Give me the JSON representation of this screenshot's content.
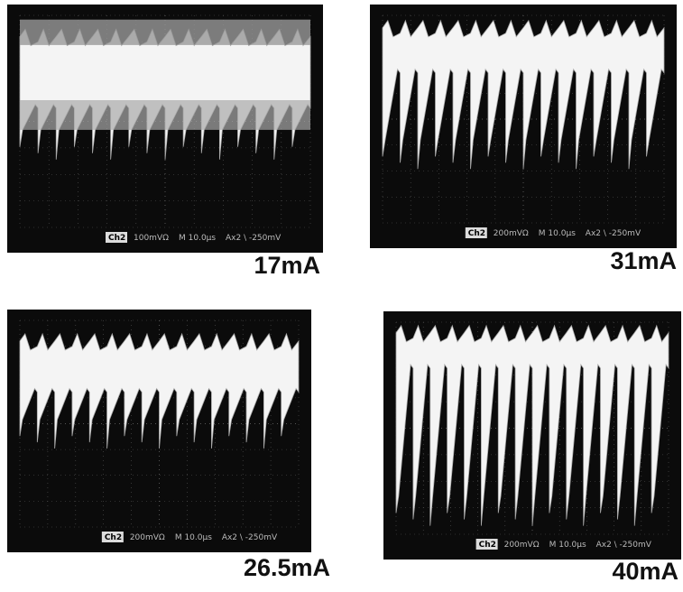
{
  "panels": [
    {
      "label": "17mA",
      "scope": {
        "channel": "Ch2",
        "scale": "100mVΩ",
        "timebase": "M 10.0µs",
        "trigger": "Ax2 \\ -250mV"
      }
    },
    {
      "label": "31mA",
      "scope": {
        "channel": "Ch2",
        "scale": "200mVΩ",
        "timebase": "M 10.0µs",
        "trigger": "Ax2 \\ -250mV"
      }
    },
    {
      "label": "26.5mA",
      "scope": {
        "channel": "Ch2",
        "scale": "200mVΩ",
        "timebase": "M 10.0µs",
        "trigger": "Ax2 \\ -250mV"
      }
    },
    {
      "label": "40mA",
      "scope": {
        "channel": "Ch2",
        "scale": "200mVΩ",
        "timebase": "M 10.0µs",
        "trigger": "Ax2 \\ -250mV"
      }
    }
  ]
}
